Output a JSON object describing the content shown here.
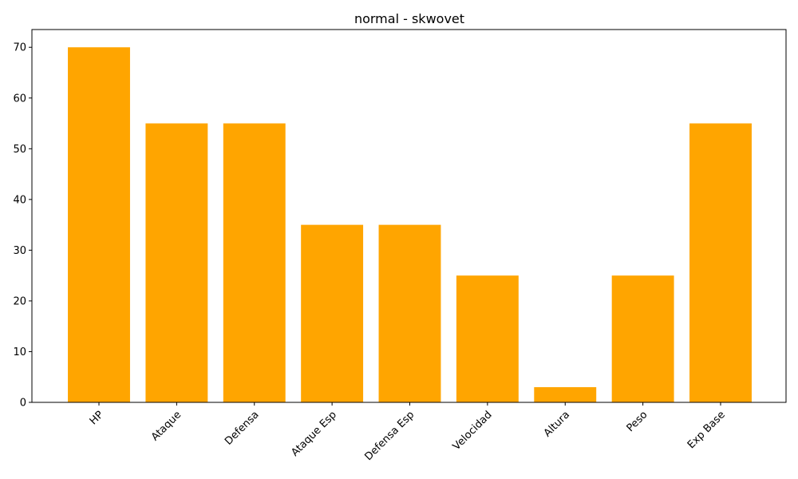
{
  "chart_data": {
    "type": "bar",
    "title": "normal - skwovet",
    "xlabel": "",
    "ylabel": "",
    "categories": [
      "HP",
      "Ataque",
      "Defensa",
      "Ataque Esp",
      "Defensa Esp",
      "Velocidad",
      "Altura",
      "Peso",
      "Exp Base"
    ],
    "values": [
      70,
      55,
      55,
      35,
      35,
      25,
      3,
      25,
      55
    ],
    "ylim": [
      0,
      73.5
    ],
    "yticks": [
      0,
      10,
      20,
      30,
      40,
      50,
      60,
      70
    ],
    "bar_color": "#ffa500",
    "grid": false,
    "legend": "none"
  }
}
